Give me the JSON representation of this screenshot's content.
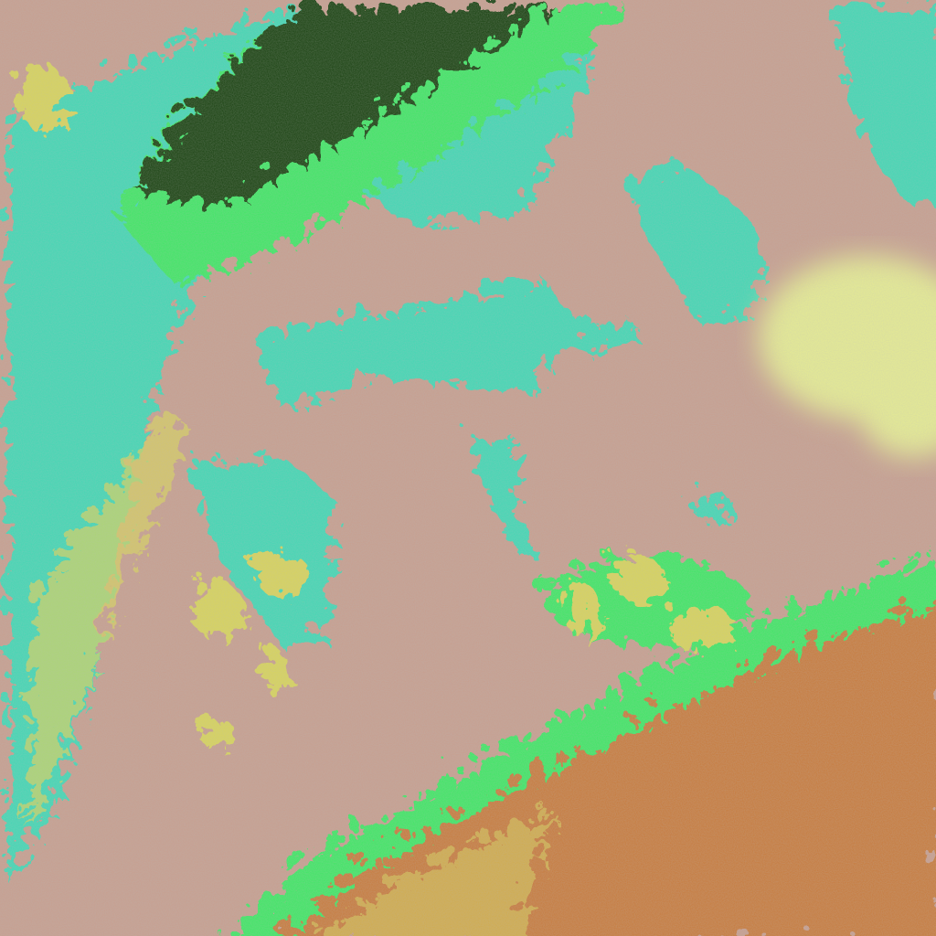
{
  "image": {
    "kind": "false-color satellite imagery",
    "colors": {
      "plain": "#c79e8e",
      "water_snow": "#3fd8b4",
      "dense_vegetation": "#14400e",
      "bright_vegetation": "#3ee864",
      "yellow_patches": "#d8d45a",
      "cloud": "#e6ec92",
      "mountain_terrain": "#c87a3a"
    }
  }
}
